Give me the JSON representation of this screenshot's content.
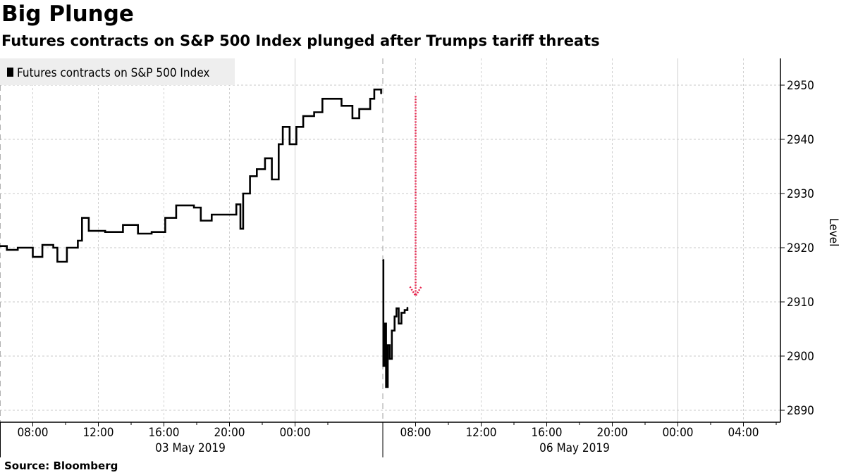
{
  "title": "Big Plunge",
  "subtitle": "Futures contracts on S&P 500 Index plunged after Trumps tariff threats",
  "source": "Source: Bloomberg",
  "chart_data": {
    "type": "line",
    "legend": {
      "placement": "top-left",
      "entries": [
        "Futures contracts on S&P 500 Index"
      ]
    },
    "ylabel": "Level",
    "ylim": [
      2888,
      2955
    ],
    "y_ticks": [
      2890,
      2900,
      2910,
      2920,
      2930,
      2940,
      2950
    ],
    "y_axis_side": "right",
    "grid": true,
    "x_segments": [
      {
        "start": "2019-05-03 06:00",
        "end": "2019-05-04 05:15",
        "date_label": "03 May 2019",
        "tick_labels": [
          "08:00",
          "12:00",
          "16:00",
          "20:00",
          "00:00"
        ]
      },
      {
        "start": "2019-05-06 06:00",
        "end": "2019-05-07 06:05",
        "date_label": "06 May 2019",
        "tick_labels": [
          "08:00",
          "12:00",
          "16:00",
          "20:00",
          "00:00",
          "04:00"
        ]
      }
    ],
    "series": [
      {
        "name": "Futures contracts on S&P 500 Index",
        "color": "#000000",
        "points": [
          [
            "2019-05-03 06:00",
            2920.3
          ],
          [
            "2019-05-03 06:25",
            2919.6
          ],
          [
            "2019-05-03 07:05",
            2920.0
          ],
          [
            "2019-05-03 08:00",
            2918.3
          ],
          [
            "2019-05-03 08:35",
            2920.5
          ],
          [
            "2019-05-03 09:15",
            2920.0
          ],
          [
            "2019-05-03 09:30",
            2917.4
          ],
          [
            "2019-05-03 10:05",
            2920.0
          ],
          [
            "2019-05-03 10:45",
            2921.3
          ],
          [
            "2019-05-03 11:00",
            2925.5
          ],
          [
            "2019-05-03 11:25",
            2923.1
          ],
          [
            "2019-05-03 12:25",
            2922.9
          ],
          [
            "2019-05-03 13:30",
            2924.2
          ],
          [
            "2019-05-03 14:25",
            2922.6
          ],
          [
            "2019-05-03 15:15",
            2922.9
          ],
          [
            "2019-05-03 16:05",
            2925.5
          ],
          [
            "2019-05-03 16:45",
            2927.8
          ],
          [
            "2019-05-03 17:50",
            2927.4
          ],
          [
            "2019-05-03 18:15",
            2925.0
          ],
          [
            "2019-05-03 18:55",
            2926.1
          ],
          [
            "2019-05-03 19:45",
            2926.1
          ],
          [
            "2019-05-03 20:25",
            2928.0
          ],
          [
            "2019-05-03 20:40",
            2923.5
          ],
          [
            "2019-05-03 20:50",
            2930.0
          ],
          [
            "2019-05-03 21:15",
            2933.2
          ],
          [
            "2019-05-03 21:40",
            2934.5
          ],
          [
            "2019-05-03 22:10",
            2936.5
          ],
          [
            "2019-05-03 22:35",
            2932.6
          ],
          [
            "2019-05-03 23:00",
            2939.1
          ],
          [
            "2019-05-03 23:15",
            2942.3
          ],
          [
            "2019-05-03 23:40",
            2939.1
          ],
          [
            "2019-05-04 00:05",
            2942.3
          ],
          [
            "2019-05-04 00:30",
            2944.3
          ],
          [
            "2019-05-04 01:10",
            2945.0
          ],
          [
            "2019-05-04 01:40",
            2947.5
          ],
          [
            "2019-05-04 02:15",
            2947.5
          ],
          [
            "2019-05-04 02:50",
            2946.2
          ],
          [
            "2019-05-04 03:30",
            2943.9
          ],
          [
            "2019-05-04 03:55",
            2945.6
          ],
          [
            "2019-05-04 04:35",
            2947.5
          ],
          [
            "2019-05-04 04:50",
            2949.2
          ],
          [
            "2019-05-04 05:15",
            2948.4
          ],
          [
            "2019-05-06 06:00",
            2917.7
          ],
          [
            "2019-05-06 06:02",
            2898.2
          ],
          [
            "2019-05-06 06:08",
            2906.0
          ],
          [
            "2019-05-06 06:12",
            2894.3
          ],
          [
            "2019-05-06 06:18",
            2902.0
          ],
          [
            "2019-05-06 06:25",
            2899.5
          ],
          [
            "2019-05-06 06:33",
            2904.7
          ],
          [
            "2019-05-06 06:43",
            2907.3
          ],
          [
            "2019-05-06 06:50",
            2908.8
          ],
          [
            "2019-05-06 06:58",
            2906.0
          ],
          [
            "2019-05-06 07:08",
            2908.0
          ],
          [
            "2019-05-06 07:20",
            2908.5
          ],
          [
            "2019-05-06 07:30",
            2909.0
          ]
        ]
      }
    ],
    "annotations": [
      {
        "type": "arrow",
        "style": "dotted",
        "color": "#e8264f",
        "time": "2019-05-06 08:00",
        "from": 2948,
        "to": 2911.5
      }
    ]
  }
}
